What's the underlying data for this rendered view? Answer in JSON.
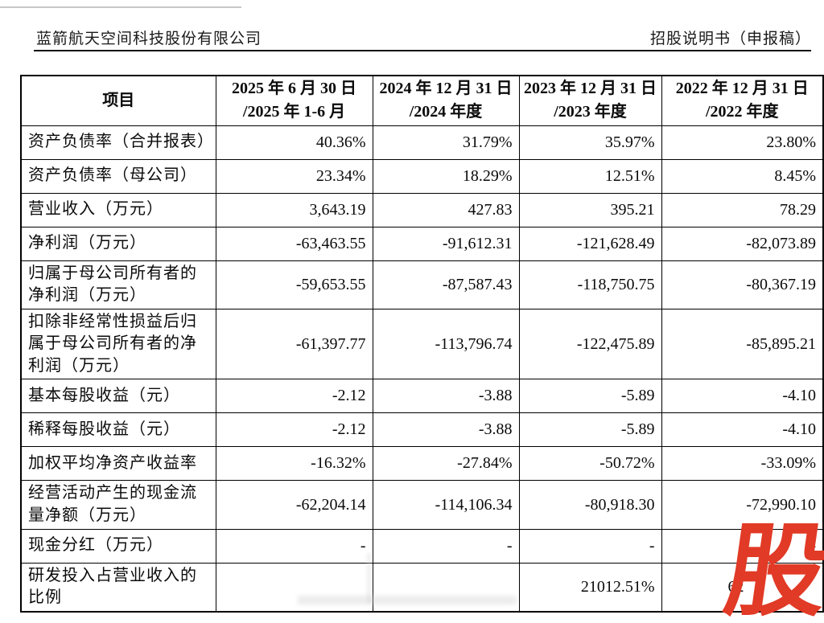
{
  "header": {
    "company": "蓝箭航天空间科技股份有限公司",
    "doc_title": "招股说明书（申报稿）"
  },
  "watermark": {
    "char": "股",
    "color": "#e13a26"
  },
  "table": {
    "columns": [
      {
        "line1": "项目",
        "line2": ""
      },
      {
        "line1": "2025 年 6 月 30 日",
        "line2": "/2025 年 1-6 月"
      },
      {
        "line1": "2024 年 12 月 31 日",
        "line2": "/2024 年度"
      },
      {
        "line1": "2023 年 12 月 31 日",
        "line2": "/2023 年度"
      },
      {
        "line1": "2022 年 12 月 31 日",
        "line2": "/2022 年度"
      }
    ],
    "rows": [
      {
        "label": "资产负债率（合并报表）",
        "values": [
          "40.36%",
          "31.79%",
          "35.97%",
          "23.80%"
        ]
      },
      {
        "label": "资产负债率（母公司）",
        "values": [
          "23.34%",
          "18.29%",
          "12.51%",
          "8.45%"
        ]
      },
      {
        "label": "营业收入（万元）",
        "values": [
          "3,643.19",
          "427.83",
          "395.21",
          "78.29"
        ]
      },
      {
        "label": "净利润（万元）",
        "values": [
          "-63,463.55",
          "-91,612.31",
          "-121,628.49",
          "-82,073.89"
        ]
      },
      {
        "label": "归属于母公司所有者的净利润（万元）",
        "values": [
          "-59,653.55",
          "-87,587.43",
          "-118,750.75",
          "-80,367.19"
        ]
      },
      {
        "label": "扣除非经常性损益后归属于母公司所有者的净利润（万元）",
        "values": [
          "-61,397.77",
          "-113,796.74",
          "-122,475.89",
          "-85,895.21"
        ]
      },
      {
        "label": "基本每股收益（元）",
        "values": [
          "-2.12",
          "-3.88",
          "-5.89",
          "-4.10"
        ]
      },
      {
        "label": "稀释每股收益（元）",
        "values": [
          "-2.12",
          "-3.88",
          "-5.89",
          "-4.10"
        ]
      },
      {
        "label": "加权平均净资产收益率",
        "values": [
          "-16.32%",
          "-27.84%",
          "-50.72%",
          "-33.09%"
        ]
      },
      {
        "label": "经营活动产生的现金流量净额（万元）",
        "values": [
          "-62,204.14",
          "-114,106.34",
          "-80,918.30",
          "-72,990.10"
        ]
      },
      {
        "label": "现金分红（万元）",
        "values": [
          "-",
          "-",
          "-",
          "-"
        ]
      },
      {
        "label": "研发投入占营业收入的比例",
        "values": [
          "",
          "",
          "21012.51%",
          "62"
        ],
        "obscured_value_col": 3
      }
    ]
  }
}
